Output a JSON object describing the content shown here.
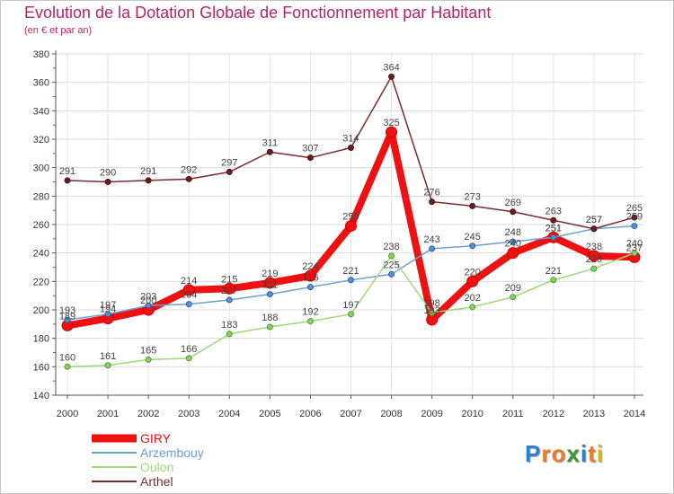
{
  "chart_data": {
    "type": "line",
    "title": "Evolution de la Dotation Globale de Fonctionnement par Habitant",
    "subtitle": "(en € et par an)",
    "x": [
      "2000",
      "2001",
      "2002",
      "2003",
      "2004",
      "2005",
      "2006",
      "2007",
      "2008",
      "2009",
      "2010",
      "2011",
      "2012",
      "2013",
      "2014"
    ],
    "ylim": [
      140,
      380
    ],
    "yticks": [
      140,
      160,
      180,
      200,
      220,
      240,
      260,
      280,
      300,
      320,
      340,
      360,
      380
    ],
    "legend_position": "bottom-left",
    "series": [
      {
        "name": "GIRY",
        "color": "#ee1111",
        "values": [
          189,
          194,
          200,
          214,
          215,
          219,
          224,
          259,
          325,
          193,
          220,
          240,
          251,
          238,
          237
        ]
      },
      {
        "name": "Arzembouy",
        "color": "#6e9fd0",
        "values": [
          193,
          197,
          203,
          204,
          207,
          211,
          216,
          221,
          225,
          243,
          245,
          248,
          251,
          257,
          259
        ]
      },
      {
        "name": "Oulon",
        "color": "#9cd97a",
        "values": [
          160,
          161,
          165,
          166,
          183,
          188,
          192,
          197,
          238,
          198,
          202,
          209,
          221,
          229,
          240
        ]
      },
      {
        "name": "Arthel",
        "color": "#7a2a2a",
        "values": [
          291,
          290,
          291,
          292,
          297,
          311,
          307,
          314,
          364,
          276,
          273,
          269,
          263,
          257,
          265
        ]
      }
    ]
  },
  "logo": {
    "text": "Proxiti",
    "letters": [
      "P",
      "r",
      "o",
      "x",
      "i",
      "t",
      "i"
    ],
    "colors": [
      "#2e7fd1",
      "#ee7a22",
      "#ee7a22",
      "#3a9a32",
      "#2e7fd1",
      "#ee7a22",
      "#d4b622"
    ]
  }
}
